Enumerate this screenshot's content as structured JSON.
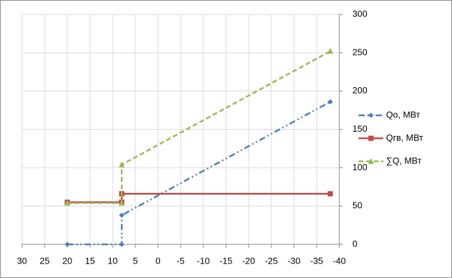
{
  "chart_data": {
    "type": "line",
    "xlim": [
      30,
      -40
    ],
    "xticks": [
      30,
      25,
      20,
      15,
      10,
      5,
      0,
      -5,
      -10,
      -15,
      -20,
      -25,
      -30,
      -35,
      -40
    ],
    "ylim": [
      0,
      300
    ],
    "yticks": [
      0,
      50,
      100,
      150,
      200,
      250,
      300
    ],
    "y_axis_position": "right",
    "grid": true,
    "legend": "right",
    "series": [
      {
        "name": "Qо, МВт",
        "color": "#4a7ebb",
        "line_style": "dash-dot-dot",
        "marker": "diamond",
        "x": [
          20,
          8,
          8,
          -38
        ],
        "values": [
          0,
          0,
          38,
          186
        ]
      },
      {
        "name": "Qгв, МВт",
        "color": "#be4b48",
        "line_style": "solid",
        "marker": "square",
        "x": [
          20,
          8,
          8,
          -38
        ],
        "values": [
          55,
          55,
          66,
          66
        ]
      },
      {
        "name": "∑Q, МВт",
        "color": "#98b954",
        "line_style": "dashed",
        "marker": "triangle",
        "x": [
          20,
          8,
          8,
          -38
        ],
        "values": [
          54,
          54,
          104,
          252
        ]
      }
    ]
  }
}
